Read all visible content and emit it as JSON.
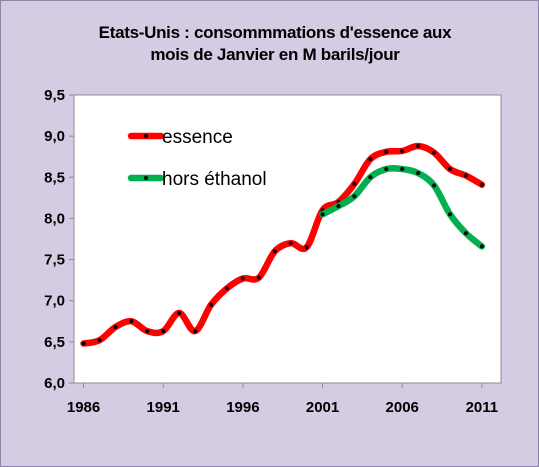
{
  "chart_data": {
    "type": "line",
    "title": [
      "Etats-Unis : consommmations d'essence aux",
      "mois de Janvier en M barils/jour"
    ],
    "xlabel": "",
    "ylabel": "",
    "xlim": [
      1986,
      2011
    ],
    "ylim": [
      6.0,
      9.5
    ],
    "y_tick_step": 0.5,
    "x_tick_labels": [
      "1986",
      "1991",
      "1996",
      "2001",
      "2006",
      "2011"
    ],
    "y_tick_labels": [
      "6,0",
      "6,5",
      "7,0",
      "7,5",
      "8,0",
      "8,5",
      "9,0",
      "9,5"
    ],
    "grid": false,
    "legend_position": "top-left",
    "series": [
      {
        "name": "essence",
        "color": "#ff0000",
        "x": [
          1986,
          1987,
          1988,
          1989,
          1990,
          1991,
          1992,
          1993,
          1994,
          1995,
          1996,
          1997,
          1998,
          1999,
          2000,
          2001,
          2002,
          2003,
          2004,
          2005,
          2006,
          2007,
          2008,
          2009,
          2010,
          2011
        ],
        "values": [
          6.48,
          6.52,
          6.68,
          6.75,
          6.63,
          6.63,
          6.85,
          6.63,
          6.95,
          7.15,
          7.27,
          7.28,
          7.6,
          7.7,
          7.65,
          8.1,
          8.2,
          8.42,
          8.72,
          8.81,
          8.82,
          8.88,
          8.8,
          8.6,
          8.52,
          8.41
        ]
      },
      {
        "name": "hors éthanol",
        "color": "#00b050",
        "x": [
          2001,
          2002,
          2003,
          2004,
          2005,
          2006,
          2007,
          2008,
          2009,
          2010,
          2011
        ],
        "values": [
          8.05,
          8.15,
          8.27,
          8.5,
          8.6,
          8.6,
          8.55,
          8.4,
          8.05,
          7.82,
          7.66
        ]
      }
    ]
  }
}
